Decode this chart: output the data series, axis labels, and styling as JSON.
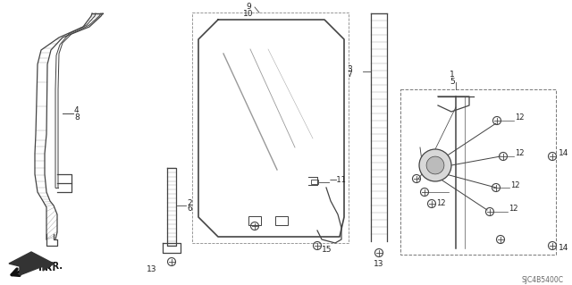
{
  "bg_color": "#ffffff",
  "line_color": "#444444",
  "text_color": "#222222",
  "watermark": "SJC4B5400C",
  "fig_width": 6.4,
  "fig_height": 3.19,
  "dpi": 100
}
